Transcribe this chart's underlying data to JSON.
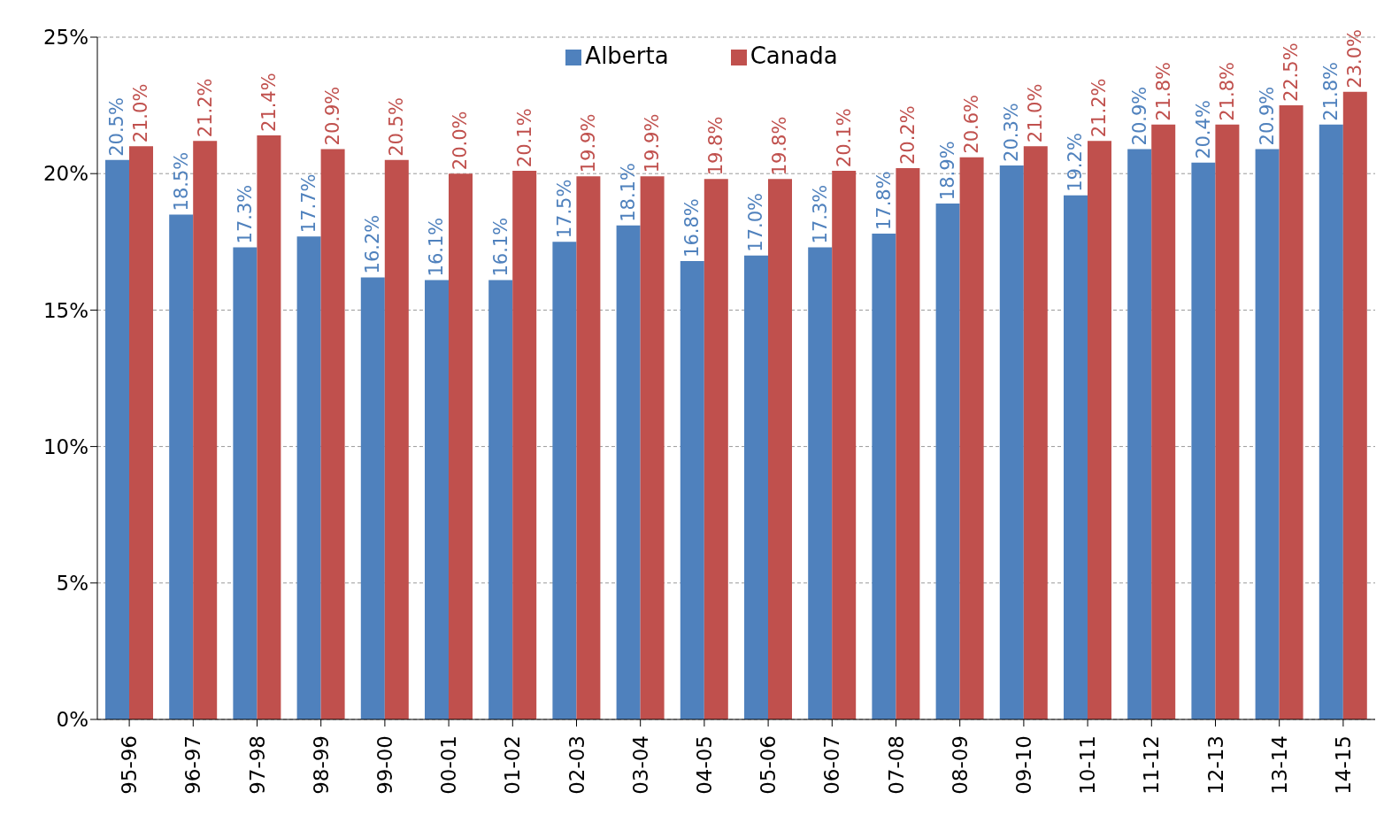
{
  "chart_data": {
    "type": "bar",
    "categories": [
      "95-96",
      "96-97",
      "97-98",
      "98-99",
      "99-00",
      "00-01",
      "01-02",
      "02-03",
      "03-04",
      "04-05",
      "05-06",
      "06-07",
      "07-08",
      "08-09",
      "09-10",
      "10-11",
      "11-12",
      "12-13",
      "13-14",
      "14-15"
    ],
    "series": [
      {
        "name": "Alberta",
        "color": "#4f81bd",
        "values": [
          20.5,
          18.5,
          17.3,
          17.7,
          16.2,
          16.1,
          16.1,
          17.5,
          18.1,
          16.8,
          17.0,
          17.3,
          17.8,
          18.9,
          20.3,
          19.2,
          20.9,
          20.4,
          20.9,
          21.8
        ],
        "value_labels": [
          "20.5%",
          "18.5%",
          "17.3%",
          "17.7%",
          "16.2%",
          "16.1%",
          "16.1%",
          "17.5%",
          "18.1%",
          "16.8%",
          "17.0%",
          "17.3%",
          "17.8%",
          "18.9%",
          "20.3%",
          "19.2%",
          "20.9%",
          "20.4%",
          "20.9%",
          "21.8%"
        ]
      },
      {
        "name": "Canada",
        "color": "#c0504d",
        "values": [
          21.0,
          21.2,
          21.4,
          20.9,
          20.5,
          20.0,
          20.1,
          19.9,
          19.9,
          19.8,
          19.8,
          20.1,
          20.2,
          20.6,
          21.0,
          21.2,
          21.8,
          21.8,
          22.5,
          23.0
        ],
        "value_labels": [
          "21.0%",
          "21.2%",
          "21.4%",
          "20.9%",
          "20.5%",
          "20.0%",
          "20.1%",
          "19.9%",
          "19.9%",
          "19.8%",
          "19.8%",
          "20.1%",
          "20.2%",
          "20.6%",
          "21.0%",
          "21.2%",
          "21.8%",
          "21.8%",
          "22.5%",
          "23.0%"
        ]
      }
    ],
    "ylim": [
      0,
      25
    ],
    "yticks": [
      {
        "value": 0,
        "label": "0%"
      },
      {
        "value": 5,
        "label": "5%"
      },
      {
        "value": 10,
        "label": "10%"
      },
      {
        "value": 15,
        "label": "15%"
      },
      {
        "value": 20,
        "label": "20%"
      },
      {
        "value": 25,
        "label": "25%"
      }
    ],
    "grid": "y",
    "legend": "top"
  }
}
